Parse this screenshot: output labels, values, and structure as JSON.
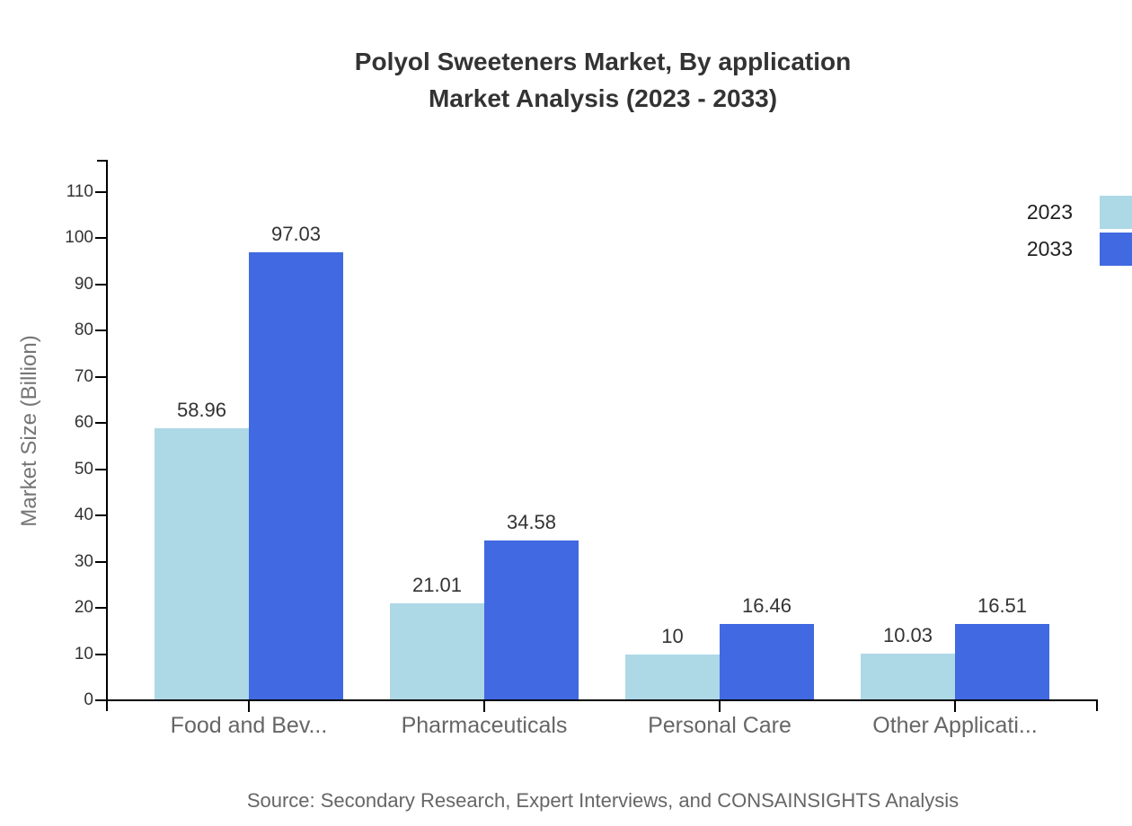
{
  "chart_data": {
    "type": "bar",
    "title_line1": "Polyol Sweeteners Market, By application",
    "title_line2": "Market Analysis (2023 - 2033)",
    "ylabel": "Market Size (Billion)",
    "xlabel": "",
    "categories": [
      "Food and Bev...",
      "Pharmaceuticals",
      "Personal Care",
      "Other Applicati..."
    ],
    "series": [
      {
        "name": "2023",
        "color": "#add8e6",
        "values": [
          58.96,
          21.01,
          10,
          10.03
        ]
      },
      {
        "name": "2033",
        "color": "#4169e1",
        "values": [
          97.03,
          34.58,
          16.46,
          16.51
        ]
      }
    ],
    "y_ticks": [
      0,
      10,
      20,
      30,
      40,
      50,
      60,
      70,
      80,
      90,
      100,
      110
    ],
    "ylim": [
      0,
      110
    ],
    "grid": false,
    "legend_position": "top-right",
    "source": "Source: Secondary Research, Expert Interviews, and CONSAINSIGHTS Analysis",
    "colors": {
      "background": "#ffffff",
      "axis": "#000000",
      "tick_label": "#333333",
      "value_label": "#333333",
      "category_label": "#666666",
      "axis_title": "#757575",
      "title": "#333333",
      "legend_label": "#222222",
      "source": "#666666"
    }
  }
}
